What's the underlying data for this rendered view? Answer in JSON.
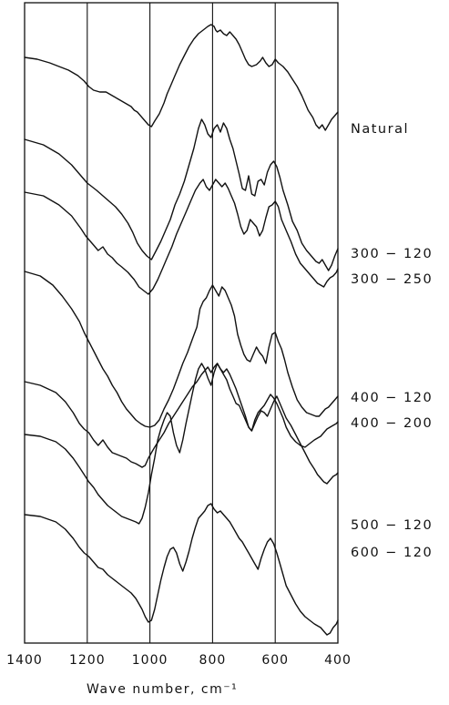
{
  "chart_data": {
    "type": "line",
    "title": "",
    "xlabel": "Wave number,   cm⁻¹",
    "ylabel": "",
    "xlim": [
      1400,
      400
    ],
    "x_ticks": [
      1400,
      1200,
      1000,
      800,
      600,
      400
    ],
    "x_tick_labels": [
      "1400",
      "1200",
      "1000",
      "800",
      "600",
      "400"
    ],
    "vertical_gridlines": [
      1200,
      1000,
      800,
      600
    ],
    "legend": "labels at right end of each trace",
    "series": [
      {
        "name": "Natural",
        "x": [
          1400,
          1360,
          1320,
          1290,
          1260,
          1230,
          1210,
          1195,
          1180,
          1160,
          1140,
          1120,
          1100,
          1080,
          1060,
          1050,
          1040,
          1020,
          1005,
          995,
          985,
          970,
          955,
          945,
          935,
          920,
          905,
          890,
          875,
          860,
          845,
          830,
          815,
          805,
          795,
          790,
          785,
          775,
          765,
          755,
          745,
          735,
          725,
          715,
          705,
          695,
          685,
          675,
          660,
          648,
          640,
          630,
          620,
          610,
          600,
          590,
          575,
          560,
          545,
          530,
          515,
          505,
          495,
          480,
          470,
          460,
          450,
          440,
          430,
          420,
          410,
          400
        ],
        "y": [
          50,
          52,
          56,
          60,
          64,
          70,
          76,
          82,
          86,
          88,
          88,
          92,
          96,
          100,
          104,
          108,
          110,
          118,
          124,
          126,
          120,
          112,
          100,
          90,
          82,
          70,
          58,
          48,
          38,
          30,
          24,
          20,
          16,
          14,
          16,
          20,
          22,
          20,
          24,
          26,
          22,
          26,
          30,
          36,
          44,
          52,
          58,
          60,
          58,
          54,
          50,
          56,
          60,
          58,
          52,
          56,
          60,
          66,
          74,
          82,
          92,
          100,
          108,
          116,
          124,
          128,
          124,
          130,
          124,
          118,
          114,
          110
        ],
        "label": "Natural"
      },
      {
        "name": "300-120",
        "x": [
          1400,
          1340,
          1290,
          1250,
          1220,
          1200,
          1185,
          1170,
          1150,
          1130,
          1110,
          1090,
          1070,
          1055,
          1040,
          1025,
          1010,
          995,
          980,
          965,
          950,
          935,
          920,
          905,
          890,
          875,
          860,
          845,
          835,
          825,
          815,
          805,
          795,
          785,
          775,
          765,
          755,
          745,
          735,
          725,
          715,
          705,
          695,
          685,
          675,
          665,
          655,
          645,
          635,
          625,
          615,
          605,
          595,
          585,
          575,
          560,
          545,
          530,
          515,
          500,
          485,
          470,
          460,
          450,
          440,
          430,
          420,
          410,
          400
        ],
        "y": [
          140,
          146,
          156,
          168,
          180,
          188,
          192,
          196,
          202,
          208,
          214,
          222,
          232,
          242,
          254,
          262,
          268,
          272,
          262,
          252,
          240,
          228,
          212,
          200,
          186,
          168,
          150,
          128,
          118,
          124,
          134,
          138,
          128,
          124,
          132,
          122,
          128,
          140,
          150,
          164,
          178,
          194,
          196,
          180,
          200,
          202,
          186,
          184,
          190,
          176,
          168,
          164,
          170,
          182,
          196,
          212,
          230,
          240,
          254,
          262,
          268,
          274,
          276,
          272,
          278,
          284,
          278,
          268,
          260
        ],
        "label": "300-120"
      },
      {
        "name": "300-250",
        "x": [
          1400,
          1340,
          1290,
          1250,
          1220,
          1205,
          1195,
          1180,
          1165,
          1150,
          1135,
          1120,
          1105,
          1090,
          1070,
          1050,
          1035,
          1020,
          1005,
          990,
          975,
          960,
          945,
          930,
          915,
          900,
          885,
          870,
          855,
          840,
          830,
          820,
          810,
          800,
          790,
          780,
          770,
          760,
          750,
          740,
          730,
          720,
          710,
          700,
          690,
          680,
          670,
          660,
          650,
          640,
          630,
          620,
          610,
          600,
          590,
          580,
          565,
          550,
          535,
          520,
          505,
          490,
          475,
          465,
          455,
          445,
          435,
          425,
          415,
          405,
          400
        ],
        "y": [
          198,
          202,
          212,
          224,
          238,
          246,
          250,
          256,
          262,
          258,
          266,
          270,
          276,
          280,
          286,
          294,
          302,
          306,
          310,
          304,
          294,
          282,
          270,
          258,
          244,
          232,
          220,
          208,
          196,
          188,
          184,
          192,
          196,
          190,
          184,
          188,
          192,
          188,
          194,
          202,
          210,
          222,
          236,
          244,
          240,
          228,
          232,
          236,
          246,
          240,
          226,
          214,
          212,
          208,
          214,
          228,
          240,
          252,
          266,
          276,
          282,
          288,
          294,
          298,
          300,
          302,
          296,
          292,
          290,
          286,
          282
        ],
        "label": "300-250"
      },
      {
        "name": "400-120",
        "x": [
          1400,
          1350,
          1310,
          1280,
          1250,
          1225,
          1210,
          1195,
          1180,
          1165,
          1150,
          1135,
          1120,
          1105,
          1090,
          1075,
          1060,
          1045,
          1030,
          1015,
          1000,
          985,
          970,
          955,
          940,
          925,
          910,
          895,
          880,
          865,
          850,
          840,
          830,
          820,
          810,
          800,
          790,
          780,
          770,
          760,
          750,
          740,
          730,
          720,
          710,
          700,
          690,
          680,
          670,
          660,
          650,
          640,
          630,
          620,
          610,
          600,
          590,
          580,
          570,
          560,
          545,
          530,
          515,
          500,
          485,
          470,
          460,
          450,
          440,
          430,
          420,
          410,
          400
        ],
        "y": [
          285,
          290,
          300,
          312,
          326,
          340,
          352,
          362,
          372,
          382,
          392,
          400,
          410,
          418,
          428,
          436,
          442,
          448,
          452,
          455,
          456,
          454,
          448,
          436,
          426,
          414,
          400,
          386,
          374,
          360,
          346,
          326,
          318,
          314,
          306,
          300,
          306,
          312,
          302,
          306,
          314,
          322,
          334,
          354,
          366,
          376,
          382,
          384,
          376,
          368,
          374,
          378,
          386,
          368,
          354,
          352,
          362,
          370,
          382,
          396,
          412,
          426,
          434,
          440,
          442,
          444,
          444,
          440,
          436,
          434,
          430,
          426,
          422
        ],
        "label": "400-120"
      },
      {
        "name": "400-200",
        "x": [
          1400,
          1350,
          1300,
          1270,
          1245,
          1225,
          1210,
          1195,
          1180,
          1165,
          1150,
          1135,
          1120,
          1105,
          1090,
          1075,
          1060,
          1045,
          1035,
          1025,
          1015,
          1005,
          995,
          985,
          970,
          955,
          940,
          925,
          910,
          895,
          880,
          865,
          850,
          835,
          825,
          815,
          805,
          795,
          785,
          775,
          765,
          755,
          745,
          735,
          725,
          715,
          705,
          695,
          685,
          675,
          665,
          655,
          645,
          635,
          625,
          615,
          605,
          595,
          585,
          575,
          565,
          550,
          535,
          520,
          505,
          490,
          475,
          465,
          455,
          445,
          435,
          425,
          415,
          405,
          400
        ],
        "y": [
          406,
          410,
          418,
          428,
          440,
          452,
          458,
          462,
          470,
          476,
          470,
          478,
          484,
          486,
          488,
          490,
          494,
          496,
          498,
          500,
          498,
          490,
          484,
          478,
          470,
          462,
          452,
          444,
          436,
          428,
          420,
          412,
          406,
          398,
          394,
          390,
          396,
          390,
          386,
          392,
          396,
          392,
          398,
          406,
          414,
          424,
          434,
          444,
          456,
          460,
          448,
          440,
          436,
          432,
          426,
          420,
          424,
          430,
          438,
          446,
          456,
          466,
          472,
          476,
          478,
          474,
          470,
          468,
          466,
          462,
          458,
          456,
          454,
          452,
          450
        ],
        "label": "400-200"
      },
      {
        "name": "500-120",
        "x": [
          1400,
          1350,
          1300,
          1270,
          1245,
          1225,
          1210,
          1195,
          1180,
          1165,
          1150,
          1135,
          1120,
          1105,
          1090,
          1075,
          1060,
          1045,
          1035,
          1025,
          1015,
          1005,
          995,
          985,
          975,
          965,
          955,
          945,
          935,
          925,
          915,
          905,
          895,
          885,
          875,
          865,
          855,
          845,
          835,
          825,
          815,
          805,
          795,
          785,
          775,
          765,
          755,
          745,
          735,
          725,
          715,
          705,
          695,
          685,
          675,
          665,
          655,
          645,
          635,
          625,
          615,
          605,
          595,
          585,
          575,
          565,
          550,
          535,
          520,
          505,
          490,
          475,
          465,
          455,
          445,
          435,
          425,
          415,
          405,
          400
        ],
        "y": [
          464,
          466,
          472,
          480,
          490,
          500,
          508,
          516,
          522,
          530,
          536,
          542,
          546,
          550,
          554,
          556,
          558,
          560,
          562,
          556,
          544,
          528,
          508,
          490,
          470,
          458,
          448,
          440,
          444,
          462,
          476,
          484,
          470,
          452,
          436,
          420,
          404,
          392,
          386,
          392,
          402,
          410,
          396,
          386,
          392,
          398,
          404,
          414,
          422,
          430,
          432,
          440,
          448,
          456,
          460,
          452,
          444,
          438,
          440,
          444,
          436,
          428,
          422,
          430,
          438,
          446,
          454,
          464,
          474,
          484,
          494,
          502,
          508,
          512,
          516,
          518,
          514,
          510,
          508,
          506
        ],
        "label": "500-120"
      },
      {
        "name": "600-120",
        "x": [
          1400,
          1350,
          1300,
          1270,
          1245,
          1225,
          1210,
          1195,
          1180,
          1165,
          1150,
          1135,
          1120,
          1105,
          1090,
          1075,
          1060,
          1045,
          1035,
          1025,
          1015,
          1005,
          995,
          985,
          975,
          965,
          955,
          945,
          935,
          925,
          915,
          905,
          895,
          885,
          875,
          865,
          855,
          845,
          835,
          825,
          815,
          805,
          795,
          785,
          775,
          765,
          755,
          745,
          735,
          725,
          715,
          705,
          695,
          685,
          675,
          665,
          655,
          645,
          635,
          625,
          615,
          605,
          595,
          585,
          575,
          565,
          550,
          535,
          520,
          505,
          490,
          475,
          465,
          455,
          445,
          435,
          425,
          415,
          405,
          400
        ],
        "y": [
          552,
          554,
          560,
          568,
          578,
          588,
          594,
          598,
          604,
          610,
          612,
          618,
          622,
          626,
          630,
          634,
          638,
          644,
          650,
          656,
          664,
          670,
          668,
          656,
          640,
          624,
          610,
          598,
          590,
          588,
          594,
          606,
          614,
          604,
          592,
          578,
          566,
          556,
          552,
          548,
          542,
          540,
          546,
          550,
          548,
          552,
          556,
          560,
          566,
          572,
          578,
          582,
          588,
          594,
          600,
          606,
          612,
          600,
          590,
          582,
          578,
          584,
          594,
          606,
          618,
          630,
          640,
          650,
          658,
          664,
          668,
          672,
          674,
          676,
          680,
          684,
          682,
          676,
          672,
          668
        ],
        "label": "600-120"
      }
    ]
  }
}
